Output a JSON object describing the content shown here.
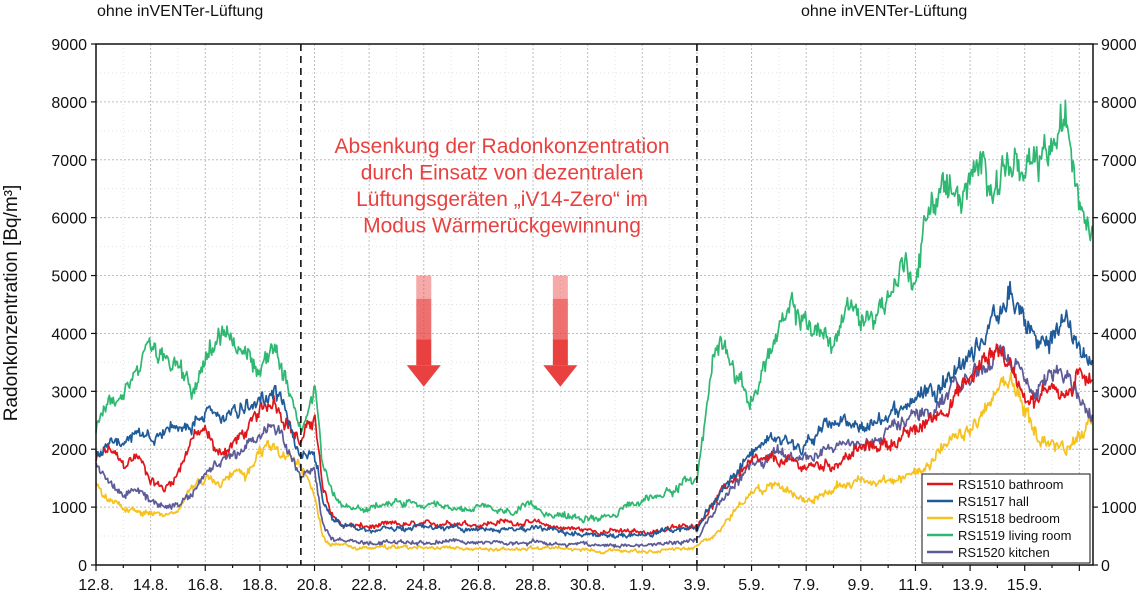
{
  "chart_data": {
    "type": "line",
    "ylabel": "Radonkonzentration [Bq/m³]",
    "xlabel": "",
    "ylim": [
      0,
      9000
    ],
    "yticks": [
      0,
      1000,
      2000,
      3000,
      4000,
      5000,
      6000,
      7000,
      8000,
      9000
    ],
    "x_range_days": [
      0,
      36.5
    ],
    "xtick_labels": [
      "12.8.",
      "14.8.",
      "16.8.",
      "18.8.",
      "20.8.",
      "22.8.",
      "24.8.",
      "26.8.",
      "28.8.",
      "30.8.",
      "1.9.",
      "3.9.",
      "5.9.",
      "7.9.",
      "9.9.",
      "11.9.",
      "13.9.",
      "15.9."
    ],
    "xtick_days": [
      0,
      2,
      4,
      6,
      8,
      10,
      12,
      14,
      16,
      18,
      20,
      22,
      24,
      26,
      28,
      30,
      32,
      34
    ],
    "grid": true,
    "legend_position": "bottom-right",
    "phase_boundaries_days": [
      7.5,
      22
    ],
    "phase_labels": [
      {
        "text": "ohne inVENTer-Lüftung",
        "position": "top-left"
      },
      {
        "text": "ohne inVENTer-Lüftung",
        "position": "top-right"
      }
    ],
    "annotation": {
      "lines": [
        "Absenkung der Radonkonzentration",
        "durch Einsatz von dezentralen",
        "Lüftungsgeräten „iV14-Zero“ im",
        "Modus Wärmerückgewinnung"
      ],
      "color": "#e8413f",
      "arrow_days": [
        12,
        17
      ]
    },
    "series": [
      {
        "name": "RS1510 bathroom",
        "color": "#e0161b",
        "points": [
          [
            0,
            1800
          ],
          [
            0.5,
            2000
          ],
          [
            1,
            1700
          ],
          [
            1.5,
            1900
          ],
          [
            2,
            1500
          ],
          [
            2.5,
            1300
          ],
          [
            3,
            1600
          ],
          [
            3.5,
            2200
          ],
          [
            4,
            2300
          ],
          [
            4.5,
            1900
          ],
          [
            5,
            2100
          ],
          [
            5.5,
            2300
          ],
          [
            6,
            2600
          ],
          [
            6.5,
            2900
          ],
          [
            7,
            2500
          ],
          [
            7.5,
            2100
          ],
          [
            8,
            2600
          ],
          [
            8.3,
            1300
          ],
          [
            8.6,
            900
          ],
          [
            9,
            700
          ],
          [
            10,
            650
          ],
          [
            11,
            700
          ],
          [
            12,
            680
          ],
          [
            13,
            750
          ],
          [
            14,
            700
          ],
          [
            15,
            750
          ],
          [
            16,
            720
          ],
          [
            17,
            650
          ],
          [
            18,
            600
          ],
          [
            19,
            580
          ],
          [
            20,
            560
          ],
          [
            21,
            620
          ],
          [
            22,
            700
          ],
          [
            22.5,
            1000
          ],
          [
            23,
            1300
          ],
          [
            23.5,
            1600
          ],
          [
            24,
            1750
          ],
          [
            25,
            1800
          ],
          [
            26,
            1700
          ],
          [
            27,
            1750
          ],
          [
            28,
            2000
          ],
          [
            29,
            2100
          ],
          [
            30,
            2300
          ],
          [
            31,
            2700
          ],
          [
            32,
            3200
          ],
          [
            32.5,
            3500
          ],
          [
            33,
            3800
          ],
          [
            33.5,
            3400
          ],
          [
            34,
            3000
          ],
          [
            34.5,
            2800
          ],
          [
            35,
            3200
          ],
          [
            35.5,
            2900
          ],
          [
            36,
            3200
          ],
          [
            36.5,
            3400
          ]
        ]
      },
      {
        "name": "RS1517 hall",
        "color": "#1f5a99",
        "points": [
          [
            0,
            1900
          ],
          [
            0.5,
            2100
          ],
          [
            1,
            2000
          ],
          [
            1.5,
            2200
          ],
          [
            2,
            2100
          ],
          [
            2.5,
            2300
          ],
          [
            3,
            2400
          ],
          [
            3.5,
            2400
          ],
          [
            4,
            2700
          ],
          [
            4.5,
            2500
          ],
          [
            5,
            2600
          ],
          [
            5.5,
            2700
          ],
          [
            6,
            2800
          ],
          [
            6.5,
            3000
          ],
          [
            7,
            2600
          ],
          [
            7.5,
            1800
          ],
          [
            8,
            1900
          ],
          [
            8.3,
            1200
          ],
          [
            8.6,
            900
          ],
          [
            9,
            700
          ],
          [
            10,
            600
          ],
          [
            11,
            620
          ],
          [
            12,
            650
          ],
          [
            13,
            650
          ],
          [
            14,
            600
          ],
          [
            15,
            620
          ],
          [
            16,
            650
          ],
          [
            17,
            550
          ],
          [
            18,
            520
          ],
          [
            19,
            500
          ],
          [
            20,
            520
          ],
          [
            21,
            580
          ],
          [
            22,
            650
          ],
          [
            22.5,
            1000
          ],
          [
            23,
            1300
          ],
          [
            23.5,
            1700
          ],
          [
            24,
            2000
          ],
          [
            25,
            2200
          ],
          [
            26,
            2100
          ],
          [
            27,
            2500
          ],
          [
            28,
            2300
          ],
          [
            29,
            2600
          ],
          [
            30,
            2900
          ],
          [
            31,
            3200
          ],
          [
            32,
            3600
          ],
          [
            32.5,
            4000
          ],
          [
            33,
            4300
          ],
          [
            33.5,
            4600
          ],
          [
            34,
            4200
          ],
          [
            34.5,
            3800
          ],
          [
            35,
            3900
          ],
          [
            35.5,
            4300
          ],
          [
            36,
            3700
          ],
          [
            36.5,
            3500
          ]
        ]
      },
      {
        "name": "RS1518 bedroom",
        "color": "#f5c21f",
        "points": [
          [
            0,
            1400
          ],
          [
            0.5,
            1100
          ],
          [
            1,
            1000
          ],
          [
            1.5,
            950
          ],
          [
            2,
            900
          ],
          [
            2.5,
            850
          ],
          [
            3,
            1000
          ],
          [
            3.5,
            1300
          ],
          [
            4,
            1500
          ],
          [
            4.5,
            1400
          ],
          [
            5,
            1600
          ],
          [
            5.5,
            1500
          ],
          [
            6,
            1900
          ],
          [
            6.5,
            2100
          ],
          [
            7,
            1900
          ],
          [
            7.5,
            1700
          ],
          [
            8,
            1200
          ],
          [
            8.3,
            500
          ],
          [
            8.6,
            350
          ],
          [
            9,
            320
          ],
          [
            10,
            300
          ],
          [
            11,
            290
          ],
          [
            12,
            300
          ],
          [
            13,
            280
          ],
          [
            14,
            270
          ],
          [
            15,
            280
          ],
          [
            16,
            290
          ],
          [
            17,
            280
          ],
          [
            18,
            260
          ],
          [
            19,
            250
          ],
          [
            20,
            250
          ],
          [
            21,
            260
          ],
          [
            22,
            320
          ],
          [
            22.5,
            500
          ],
          [
            23,
            700
          ],
          [
            23.5,
            1000
          ],
          [
            24,
            1300
          ],
          [
            25,
            1400
          ],
          [
            26,
            1100
          ],
          [
            27,
            1300
          ],
          [
            28,
            1500
          ],
          [
            29,
            1400
          ],
          [
            30,
            1600
          ],
          [
            31,
            2000
          ],
          [
            32,
            2300
          ],
          [
            32.5,
            2600
          ],
          [
            33,
            3000
          ],
          [
            33.5,
            3200
          ],
          [
            34,
            2700
          ],
          [
            34.5,
            2200
          ],
          [
            35,
            2100
          ],
          [
            35.5,
            2000
          ],
          [
            36,
            2300
          ],
          [
            36.5,
            2400
          ]
        ]
      },
      {
        "name": "RS1519 living room",
        "color": "#2eb872",
        "points": [
          [
            0,
            2300
          ],
          [
            0.5,
            2800
          ],
          [
            1,
            3000
          ],
          [
            1.5,
            3300
          ],
          [
            2,
            3800
          ],
          [
            2.5,
            3700
          ],
          [
            3,
            3500
          ],
          [
            3.5,
            3100
          ],
          [
            4,
            3600
          ],
          [
            4.5,
            4000
          ],
          [
            5,
            3900
          ],
          [
            5.5,
            3600
          ],
          [
            6,
            3400
          ],
          [
            6.5,
            3800
          ],
          [
            7,
            3000
          ],
          [
            7.5,
            2400
          ],
          [
            8,
            3200
          ],
          [
            8.3,
            1800
          ],
          [
            8.6,
            1300
          ],
          [
            9,
            1000
          ],
          [
            10,
            950
          ],
          [
            11,
            1100
          ],
          [
            12,
            1000
          ],
          [
            13,
            950
          ],
          [
            14,
            1000
          ],
          [
            15,
            900
          ],
          [
            16,
            1000
          ],
          [
            17,
            850
          ],
          [
            18,
            800
          ],
          [
            19,
            900
          ],
          [
            20,
            1100
          ],
          [
            21,
            1300
          ],
          [
            22,
            1500
          ],
          [
            22.3,
            2500
          ],
          [
            22.6,
            3600
          ],
          [
            23,
            4000
          ],
          [
            23.5,
            3200
          ],
          [
            24,
            2800
          ],
          [
            24.5,
            3500
          ],
          [
            25,
            4000
          ],
          [
            25.5,
            4400
          ],
          [
            26,
            4200
          ],
          [
            27,
            3800
          ],
          [
            27.5,
            4500
          ],
          [
            28,
            4200
          ],
          [
            29,
            4600
          ],
          [
            29.5,
            5200
          ],
          [
            30,
            5000
          ],
          [
            30.5,
            6200
          ],
          [
            31,
            6600
          ],
          [
            31.5,
            6300
          ],
          [
            32,
            6500
          ],
          [
            32.5,
            6900
          ],
          [
            33,
            6700
          ],
          [
            33.5,
            7000
          ],
          [
            34,
            6600
          ],
          [
            34.5,
            6900
          ],
          [
            35,
            7200
          ],
          [
            35.5,
            7600
          ],
          [
            36,
            6500
          ],
          [
            36.5,
            5800
          ]
        ]
      },
      {
        "name": "RS1520 kitchen",
        "color": "#5d5b97",
        "points": [
          [
            0,
            1700
          ],
          [
            0.5,
            1500
          ],
          [
            1,
            1200
          ],
          [
            1.5,
            1300
          ],
          [
            2,
            1100
          ],
          [
            2.5,
            1000
          ],
          [
            3,
            1100
          ],
          [
            3.5,
            1300
          ],
          [
            4,
            1600
          ],
          [
            4.5,
            1700
          ],
          [
            5,
            1900
          ],
          [
            5.5,
            2000
          ],
          [
            6,
            2200
          ],
          [
            6.5,
            2500
          ],
          [
            7,
            2100
          ],
          [
            7.5,
            1500
          ],
          [
            8,
            1700
          ],
          [
            8.3,
            700
          ],
          [
            8.6,
            450
          ],
          [
            9,
            400
          ],
          [
            10,
            380
          ],
          [
            11,
            400
          ],
          [
            12,
            390
          ],
          [
            13,
            420
          ],
          [
            14,
            400
          ],
          [
            15,
            380
          ],
          [
            16,
            400
          ],
          [
            17,
            360
          ],
          [
            18,
            340
          ],
          [
            19,
            330
          ],
          [
            20,
            350
          ],
          [
            21,
            380
          ],
          [
            22,
            450
          ],
          [
            22.5,
            800
          ],
          [
            23,
            1200
          ],
          [
            23.5,
            1500
          ],
          [
            24,
            1700
          ],
          [
            25,
            1900
          ],
          [
            26,
            1800
          ],
          [
            27,
            2000
          ],
          [
            28,
            2100
          ],
          [
            29,
            2300
          ],
          [
            30,
            2600
          ],
          [
            31,
            2900
          ],
          [
            32,
            3300
          ],
          [
            32.5,
            3400
          ],
          [
            33,
            3600
          ],
          [
            33.5,
            3500
          ],
          [
            34,
            3300
          ],
          [
            34.5,
            3100
          ],
          [
            35,
            3300
          ],
          [
            35.5,
            3400
          ],
          [
            36,
            2800
          ],
          [
            36.5,
            2600
          ]
        ]
      }
    ]
  }
}
